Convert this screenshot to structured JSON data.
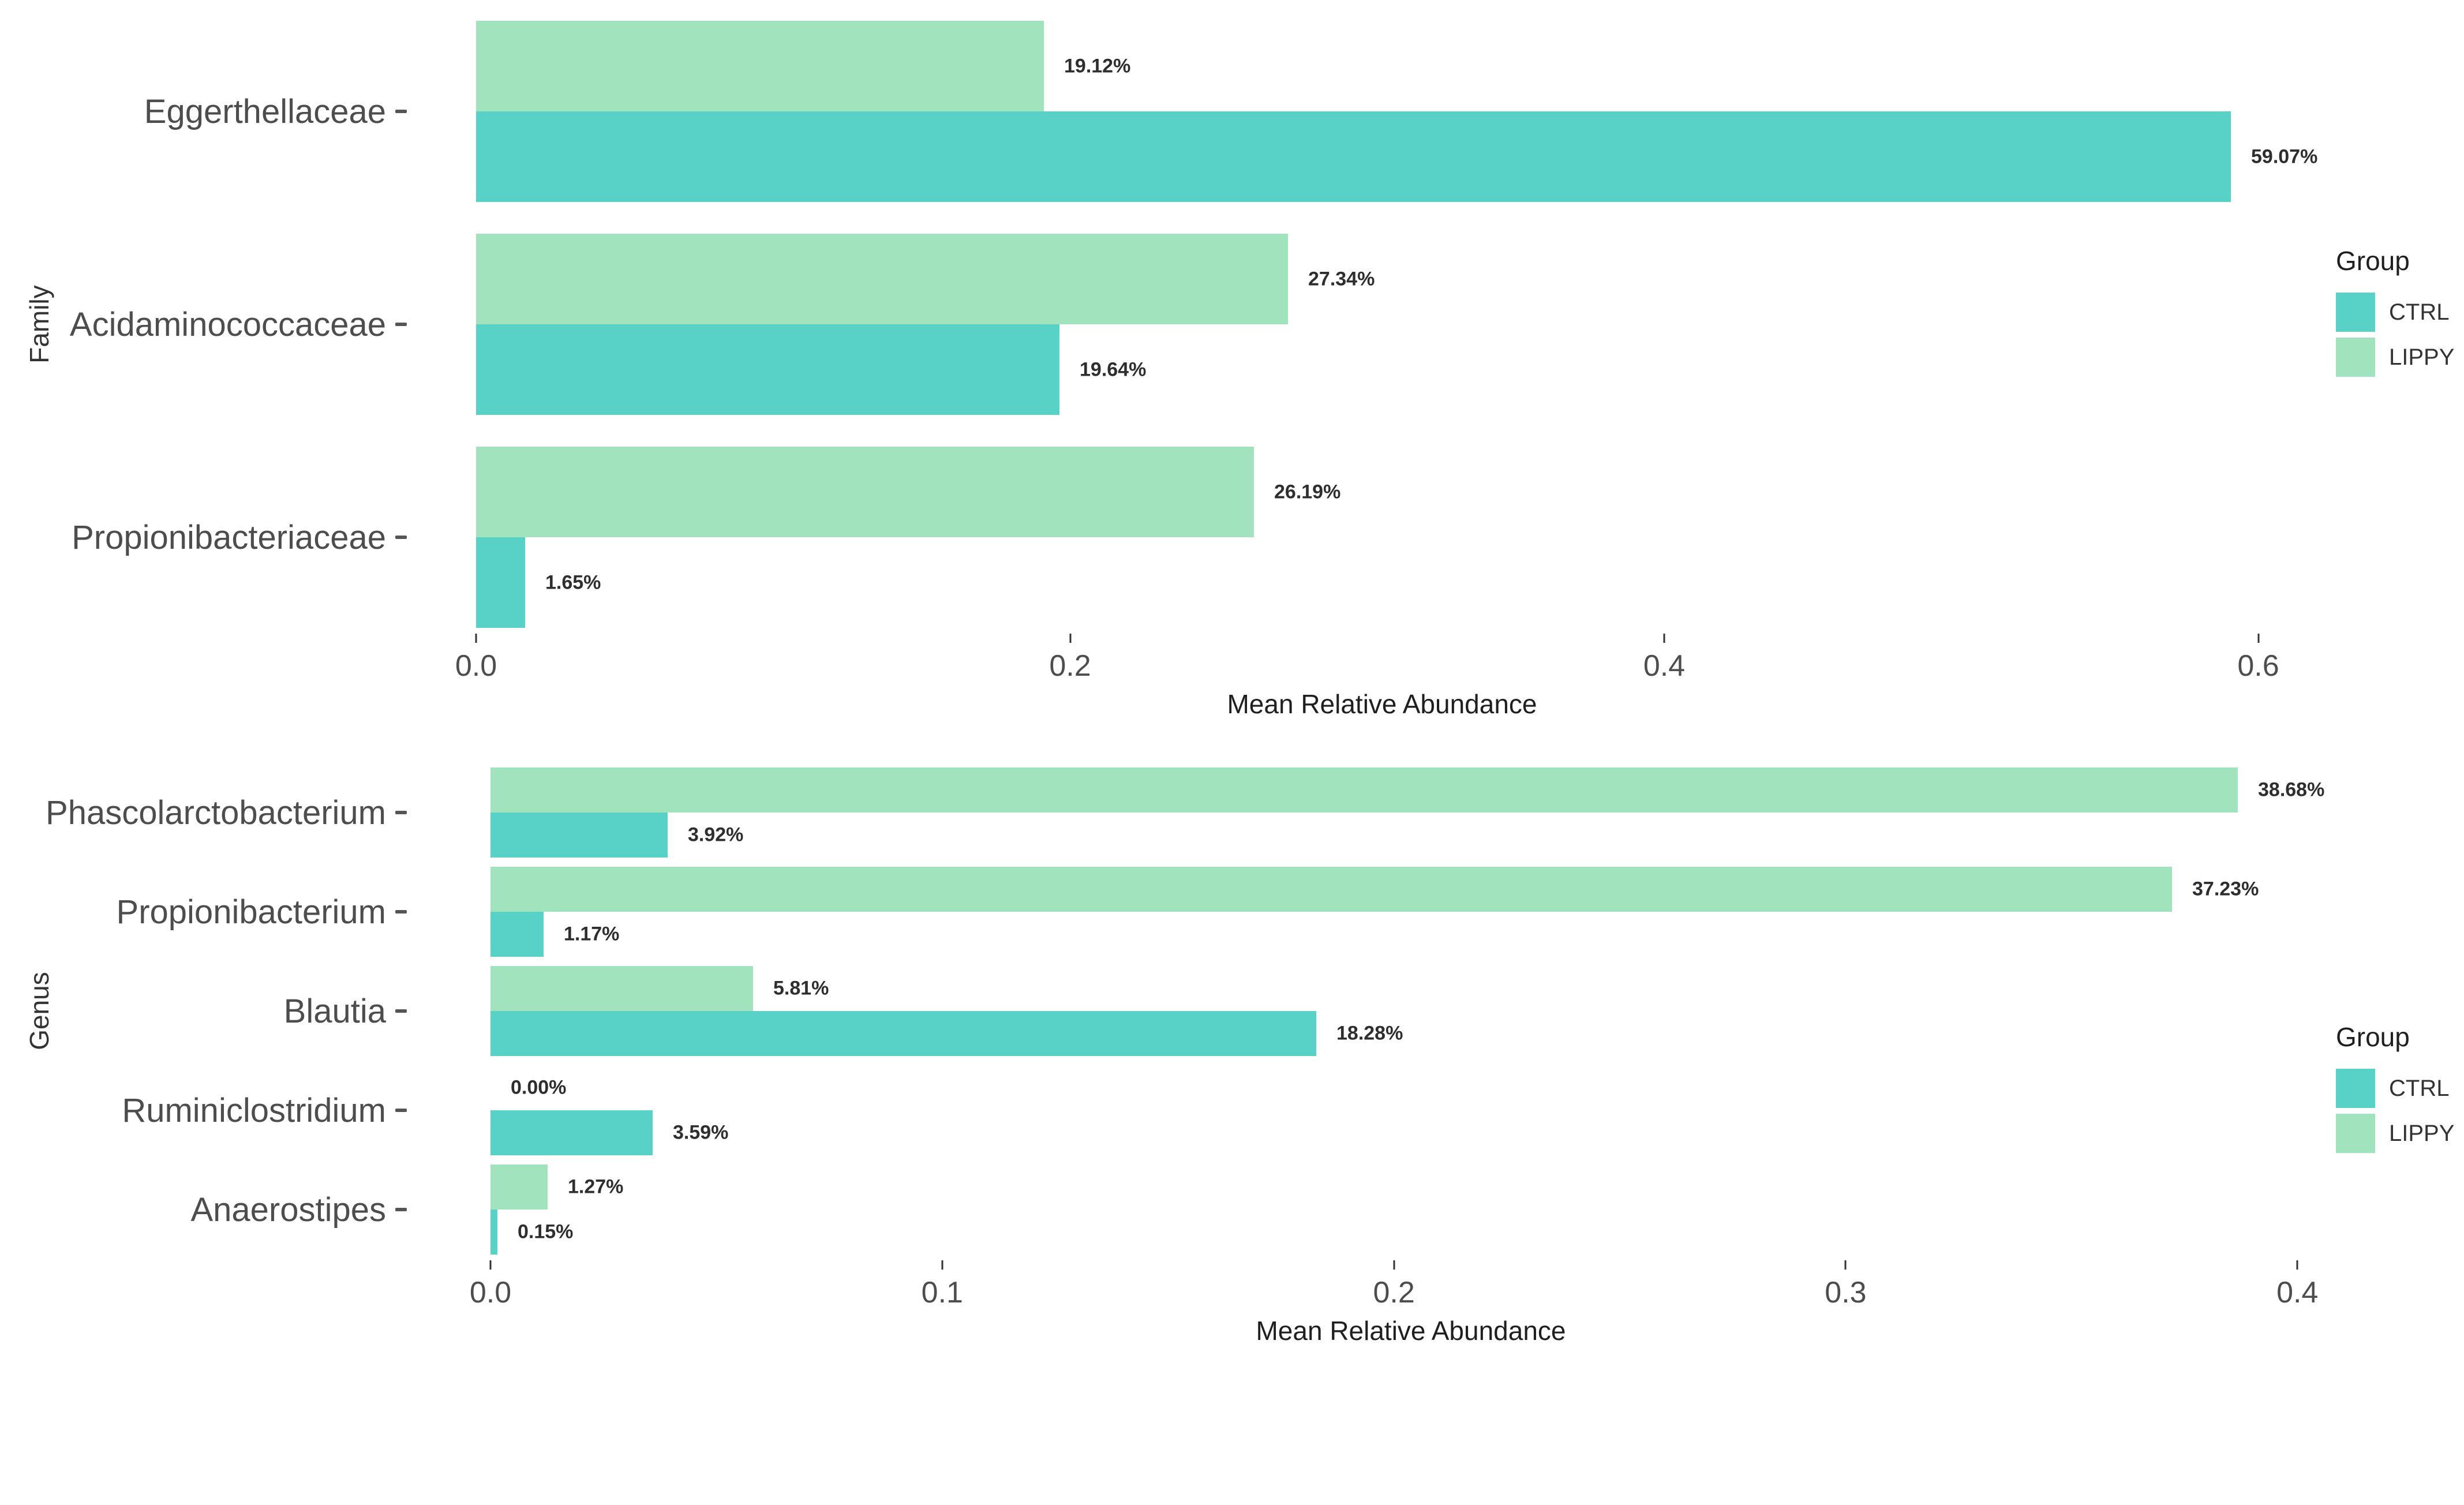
{
  "page": {
    "background": "#ffffff"
  },
  "colors": {
    "CTRL": "#58D1C7",
    "LIPPY": "#A1E3BD"
  },
  "legend": {
    "title": "Group",
    "items": [
      {
        "label": "CTRL",
        "color_key": "CTRL"
      },
      {
        "label": "LIPPY",
        "color_key": "LIPPY"
      }
    ],
    "position": "right"
  },
  "chart_data": [
    {
      "type": "bar",
      "orientation": "horizontal",
      "title": "",
      "ylabel": "Family",
      "xlabel": "Mean Relative Abundance",
      "categories": [
        "Eggerthellaceae",
        "Acidaminococcaceae",
        "Propionibacteriaceae"
      ],
      "series": [
        {
          "name": "LIPPY",
          "values": [
            0.1912,
            0.2734,
            0.2619
          ],
          "labels": [
            "19.12%",
            "27.34%",
            "26.19%"
          ]
        },
        {
          "name": "CTRL",
          "values": [
            0.5907,
            0.1964,
            0.0165
          ],
          "labels": [
            "59.07%",
            "19.64%",
            "1.65%"
          ]
        }
      ],
      "x_ticks": [
        "0.0",
        "0.2",
        "0.4",
        "0.6"
      ],
      "x_tick_values": [
        0.0,
        0.2,
        0.4,
        0.6
      ],
      "xlim": [
        0,
        0.61
      ],
      "grid": false,
      "legend_position": "right"
    },
    {
      "type": "bar",
      "orientation": "horizontal",
      "title": "",
      "ylabel": "Genus",
      "xlabel": "Mean Relative Abundance",
      "categories": [
        "Phascolarctobacterium",
        "Propionibacterium",
        "Blautia",
        "Ruminiclostridium",
        "Anaerostipes"
      ],
      "series": [
        {
          "name": "LIPPY",
          "values": [
            0.3868,
            0.3723,
            0.0581,
            0.0,
            0.0127
          ],
          "labels": [
            "38.68%",
            "37.23%",
            "5.81%",
            "0.00%",
            "1.27%"
          ]
        },
        {
          "name": "CTRL",
          "values": [
            0.0392,
            0.0117,
            0.1828,
            0.0359,
            0.0015
          ],
          "labels": [
            "3.92%",
            "1.17%",
            "18.28%",
            "3.59%",
            "0.15%"
          ]
        }
      ],
      "x_ticks": [
        "0.0",
        "0.1",
        "0.2",
        "0.3",
        "0.4"
      ],
      "x_tick_values": [
        0.0,
        0.1,
        0.2,
        0.3,
        0.4
      ],
      "xlim": [
        0,
        0.4075
      ],
      "grid": false,
      "legend_position": "right"
    }
  ]
}
